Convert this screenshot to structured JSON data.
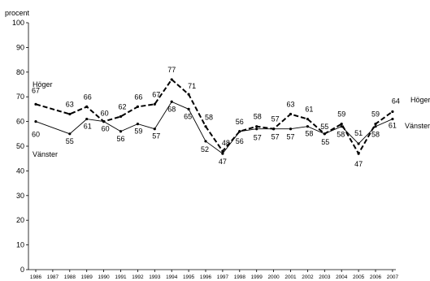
{
  "chart_data": {
    "type": "line",
    "title": "",
    "ylabel": "procent",
    "xlabel": "",
    "ylim": [
      0,
      100
    ],
    "yticks": [
      0,
      10,
      20,
      30,
      40,
      50,
      60,
      70,
      80,
      90,
      100
    ],
    "grid": false,
    "x": [
      "1986",
      "1987",
      "1988",
      "1989",
      "1990",
      "1991",
      "1992",
      "1993",
      "1994",
      "1995",
      "1996",
      "1997",
      "1998",
      "1999",
      "2000",
      "2001",
      "2002",
      "2003",
      "2004",
      "2005",
      "2006",
      "2007"
    ],
    "series": [
      {
        "name": "Höger",
        "style": "dashed",
        "color": "#000000",
        "values": [
          67,
          null,
          63,
          66,
          60,
          62,
          66,
          67,
          77,
          71,
          58,
          48,
          56,
          58,
          57,
          63,
          61,
          55,
          59,
          47,
          59,
          64
        ],
        "labels": [
          "67",
          "",
          "63",
          "66",
          "60",
          "62",
          "66",
          "67",
          "77",
          "71",
          "58",
          "48",
          "56",
          "58",
          "57",
          "63",
          "61",
          "55",
          "59",
          "47",
          "59",
          "64"
        ]
      },
      {
        "name": "Vänster",
        "style": "solid",
        "color": "#000000",
        "values": [
          60,
          null,
          55,
          61,
          60,
          56,
          59,
          57,
          68,
          65,
          52,
          47,
          56,
          57,
          57,
          57,
          58,
          55,
          58,
          51,
          58,
          61
        ],
        "labels": [
          "60",
          "",
          "55",
          "61",
          "60",
          "56",
          "59",
          "57",
          "68",
          "65",
          "52",
          "47",
          "56",
          "57",
          "57",
          "57",
          "58",
          "55",
          "58",
          "51",
          "58",
          "61"
        ]
      }
    ]
  }
}
